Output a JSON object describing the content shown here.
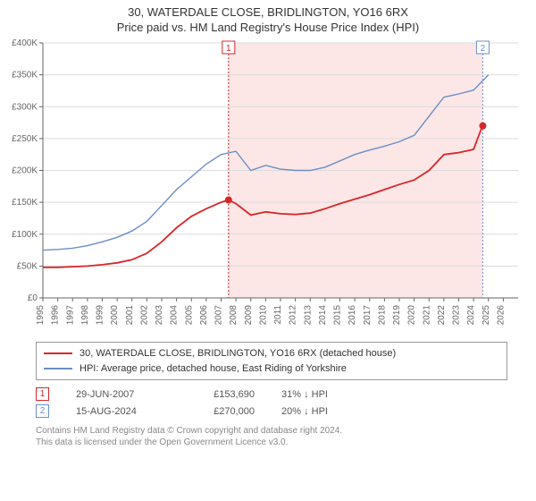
{
  "title_line1": "30, WATERDALE CLOSE, BRIDLINGTON, YO16 6RX",
  "title_line2": "Price paid vs. HM Land Registry's House Price Index (HPI)",
  "chart": {
    "type": "line",
    "background_color": "#ffffff",
    "grid_color": "#dcdcdc",
    "highlight_band_color": "#fde6e6",
    "highlight_band_x": [
      2007.5,
      2024.62
    ],
    "x_axis": {
      "label": null,
      "lim": [
        1995,
        2027
      ],
      "ticks": [
        1995,
        1996,
        1997,
        1998,
        1999,
        2000,
        2001,
        2002,
        2003,
        2004,
        2005,
        2006,
        2007,
        2008,
        2009,
        2010,
        2011,
        2012,
        2013,
        2014,
        2015,
        2016,
        2017,
        2018,
        2019,
        2020,
        2021,
        2022,
        2023,
        2024,
        2025,
        2026
      ],
      "tick_label_fontsize": 10,
      "tick_label_rotation": -90
    },
    "y_axis": {
      "label": null,
      "lim": [
        0,
        400000
      ],
      "ticks": [
        0,
        50000,
        100000,
        150000,
        200000,
        250000,
        300000,
        350000,
        400000
      ],
      "tick_labels": [
        "£0",
        "£50K",
        "£100K",
        "£150K",
        "£200K",
        "£250K",
        "£300K",
        "£350K",
        "£400K"
      ],
      "tick_label_fontsize": 10
    },
    "series": [
      {
        "name": "property_price",
        "legend_label": "30, WATERDALE CLOSE, BRIDLINGTON, YO16 6RX (detached house)",
        "color": "#d62728",
        "line_width": 1.8,
        "x": [
          1995,
          1996,
          1997,
          1998,
          1999,
          2000,
          2001,
          2002,
          2003,
          2004,
          2005,
          2006,
          2007,
          2007.5,
          2008,
          2009,
          2010,
          2011,
          2012,
          2013,
          2014,
          2015,
          2016,
          2017,
          2018,
          2019,
          2020,
          2021,
          2022,
          2023,
          2024,
          2024.6
        ],
        "y": [
          48000,
          48000,
          49000,
          50000,
          52000,
          55000,
          60000,
          70000,
          88000,
          110000,
          128000,
          140000,
          150000,
          153690,
          148000,
          130000,
          135000,
          132000,
          131000,
          133000,
          140000,
          148000,
          155000,
          162000,
          170000,
          178000,
          185000,
          200000,
          225000,
          228000,
          233000,
          270000
        ]
      },
      {
        "name": "hpi",
        "legend_label": "HPI: Average price, detached house, East Riding of Yorkshire",
        "color": "#6a8fc7",
        "line_width": 1.4,
        "x": [
          1995,
          1996,
          1997,
          1998,
          1999,
          2000,
          2001,
          2002,
          2003,
          2004,
          2005,
          2006,
          2007,
          2008,
          2009,
          2010,
          2011,
          2012,
          2013,
          2014,
          2015,
          2016,
          2017,
          2018,
          2019,
          2020,
          2021,
          2022,
          2023,
          2024,
          2025
        ],
        "y": [
          75000,
          76000,
          78000,
          82000,
          88000,
          95000,
          105000,
          120000,
          145000,
          170000,
          190000,
          210000,
          225000,
          230000,
          200000,
          208000,
          202000,
          200000,
          200000,
          205000,
          215000,
          225000,
          232000,
          238000,
          245000,
          255000,
          285000,
          315000,
          320000,
          326000,
          350000
        ]
      }
    ],
    "transaction_markers": [
      {
        "n": "1",
        "x": 2007.5,
        "y": 153690,
        "border_color": "#d62728",
        "text_color": "#d62728",
        "point_color": "#d62728"
      },
      {
        "n": "2",
        "x": 2024.62,
        "y": 270000,
        "border_color": "#6a8fc7",
        "text_color": "#6a8fc7",
        "point_color": "#d62728"
      }
    ]
  },
  "legend": {
    "items": [
      {
        "label": "30, WATERDALE CLOSE, BRIDLINGTON, YO16 6RX (detached house)",
        "color": "#d62728"
      },
      {
        "label": "HPI: Average price, detached house, East Riding of Yorkshire",
        "color": "#6a8fc7"
      }
    ]
  },
  "transactions_table": [
    {
      "n": "1",
      "border_color": "#d62728",
      "text_color": "#d62728",
      "date": "29-JUN-2007",
      "price": "£153,690",
      "diff": "31% ↓ HPI"
    },
    {
      "n": "2",
      "border_color": "#6a8fc7",
      "text_color": "#6a8fc7",
      "date": "15-AUG-2024",
      "price": "£270,000",
      "diff": "20% ↓ HPI"
    }
  ],
  "footnote_line1": "Contains HM Land Registry data © Crown copyright and database right 2024.",
  "footnote_line2": "This data is licensed under the Open Government Licence v3.0."
}
